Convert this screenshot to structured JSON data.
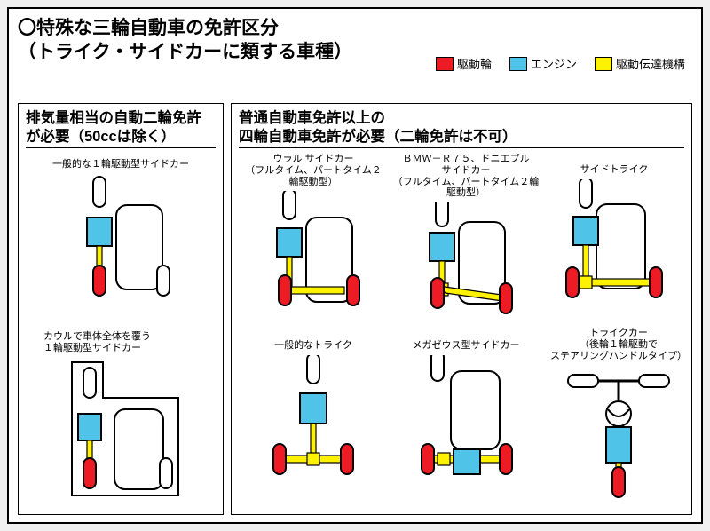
{
  "title_line1": "〇特殊な三輪自動車の免許区分",
  "title_line2": "（トライク・サイドカーに類する車種）",
  "legend": {
    "drive_wheel": {
      "label": "駆動輪",
      "color": "#ed1c24"
    },
    "engine": {
      "label": "エンジン",
      "color": "#4fc4e8"
    },
    "drivetrain": {
      "label": "駆動伝達機構",
      "color": "#fff200"
    }
  },
  "colors": {
    "stroke": "#000000",
    "body_fill": "#ffffff",
    "drive": "#ed1c24",
    "engine": "#4fc4e8",
    "shaft": "#fff200",
    "idle_wheel": "#ffffff"
  },
  "left_column": {
    "header": "排気量相当の自動二輪免許\nが必要（50ccは除く）",
    "items": [
      {
        "key": "a",
        "caption": "一般的な１輪駆動型サイドカー"
      },
      {
        "key": "b",
        "caption": "カウルで車体全体を覆う\n１輪駆動型サイドカー"
      }
    ]
  },
  "right_column": {
    "header": "普通自動車免許以上の\n四輪自動車免許が必要（二輪免許は不可）",
    "items": [
      {
        "key": "c",
        "caption": "ウラル サイドカー\n（フルタイム、パートタイム２輪駆動型）"
      },
      {
        "key": "d",
        "caption": "ＢＭＷ－Ｒ７５、ドニエプル\nサイドカー\n（フルタイム、パートタイム２輪駆動型）"
      },
      {
        "key": "e",
        "caption": "サイドトライク"
      },
      {
        "key": "f",
        "caption": "一般的なトライク"
      },
      {
        "key": "g",
        "caption": "メガゼウス型サイドカー"
      },
      {
        "key": "h",
        "caption": "トライクカー\n（後輪１輪駆動で\nステアリングハンドルタイプ）"
      }
    ]
  }
}
